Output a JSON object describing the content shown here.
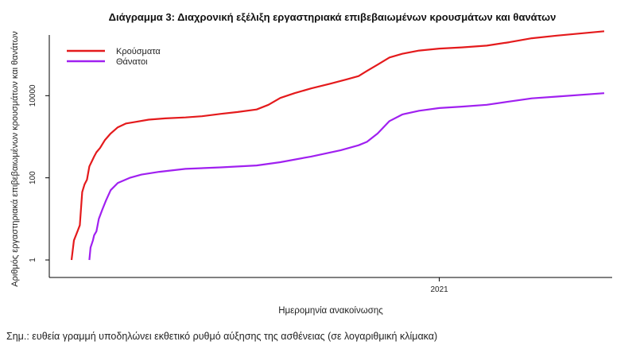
{
  "chart_data": {
    "type": "line",
    "title": "Διάγραμμα 3: Διαχρονική εξέλιξη εργαστηριακά επιβεβαιωμένων κρουσμάτων και θανάτων",
    "xlabel": "Ημερομηνία ανακοίνωσης",
    "ylabel": "Αριθμός εργαστηριακά επιβεβαιωμένων κρουσμάτων και θανάτων",
    "y_scale": "log",
    "y_ticks": [
      1,
      100,
      10000
    ],
    "y_tick_labels": [
      "1",
      "100",
      "10000"
    ],
    "x_tick_labels": [
      "2021"
    ],
    "x_ticks": [
      "2021-01-01"
    ],
    "xlim": [
      "2020-02-26",
      "2021-05-20"
    ],
    "ylim": [
      0.7,
      300000
    ],
    "legend": "top-left",
    "grid": false,
    "series": [
      {
        "name": "Κρούσματα",
        "color": "#e41a1c",
        "points": [
          [
            "2020-02-26",
            1
          ],
          [
            "2020-02-28",
            3
          ],
          [
            "2020-03-02",
            5
          ],
          [
            "2020-03-04",
            7
          ],
          [
            "2020-03-06",
            45
          ],
          [
            "2020-03-08",
            70
          ],
          [
            "2020-03-10",
            90
          ],
          [
            "2020-03-12",
            190
          ],
          [
            "2020-03-14",
            250
          ],
          [
            "2020-03-16",
            330
          ],
          [
            "2020-03-18",
            420
          ],
          [
            "2020-03-21",
            530
          ],
          [
            "2020-03-25",
            820
          ],
          [
            "2020-03-30",
            1200
          ],
          [
            "2020-04-05",
            1700
          ],
          [
            "2020-04-12",
            2100
          ],
          [
            "2020-04-20",
            2300
          ],
          [
            "2020-05-01",
            2600
          ],
          [
            "2020-05-15",
            2800
          ],
          [
            "2020-06-01",
            2950
          ],
          [
            "2020-06-15",
            3150
          ],
          [
            "2020-07-01",
            3600
          ],
          [
            "2020-07-15",
            4000
          ],
          [
            "2020-07-31",
            4600
          ],
          [
            "2020-08-10",
            6000
          ],
          [
            "2020-08-20",
            8800
          ],
          [
            "2020-09-01",
            11500
          ],
          [
            "2020-09-15",
            15000
          ],
          [
            "2020-10-01",
            19500
          ],
          [
            "2020-10-15",
            25000
          ],
          [
            "2020-10-25",
            30000
          ],
          [
            "2020-11-01",
            40000
          ],
          [
            "2020-11-10",
            57000
          ],
          [
            "2020-11-20",
            85000
          ],
          [
            "2020-12-01",
            105000
          ],
          [
            "2020-12-15",
            125000
          ],
          [
            "2021-01-01",
            140000
          ],
          [
            "2021-01-20",
            150000
          ],
          [
            "2021-02-10",
            165000
          ],
          [
            "2021-03-01",
            200000
          ],
          [
            "2021-03-20",
            250000
          ],
          [
            "2021-04-10",
            290000
          ],
          [
            "2021-05-20",
            370000
          ]
        ]
      },
      {
        "name": "Θάνατοι",
        "color": "#a020f0",
        "points": [
          [
            "2020-03-12",
            1
          ],
          [
            "2020-03-13",
            2
          ],
          [
            "2020-03-15",
            3
          ],
          [
            "2020-03-16",
            4
          ],
          [
            "2020-03-18",
            5
          ],
          [
            "2020-03-20",
            10
          ],
          [
            "2020-03-23",
            17
          ],
          [
            "2020-03-26",
            28
          ],
          [
            "2020-03-30",
            50
          ],
          [
            "2020-04-05",
            75
          ],
          [
            "2020-04-15",
            100
          ],
          [
            "2020-04-25",
            120
          ],
          [
            "2020-05-10",
            140
          ],
          [
            "2020-06-01",
            165
          ],
          [
            "2020-07-01",
            180
          ],
          [
            "2020-07-31",
            200
          ],
          [
            "2020-08-20",
            240
          ],
          [
            "2020-09-15",
            330
          ],
          [
            "2020-10-10",
            470
          ],
          [
            "2020-10-25",
            620
          ],
          [
            "2020-11-01",
            750
          ],
          [
            "2020-11-10",
            1200
          ],
          [
            "2020-11-20",
            2400
          ],
          [
            "2020-12-01",
            3500
          ],
          [
            "2020-12-15",
            4300
          ],
          [
            "2021-01-01",
            5000
          ],
          [
            "2021-01-20",
            5400
          ],
          [
            "2021-02-10",
            6000
          ],
          [
            "2021-03-01",
            7200
          ],
          [
            "2021-03-20",
            8600
          ],
          [
            "2021-04-10",
            9500
          ],
          [
            "2021-05-20",
            11500
          ]
        ]
      }
    ]
  },
  "note": "Σημ.: ευθεία γραμμή υποδηλώνει εκθετικό ρυθμό αύξησης της ασθένειας (σε λογαριθμική κλίμακα)"
}
